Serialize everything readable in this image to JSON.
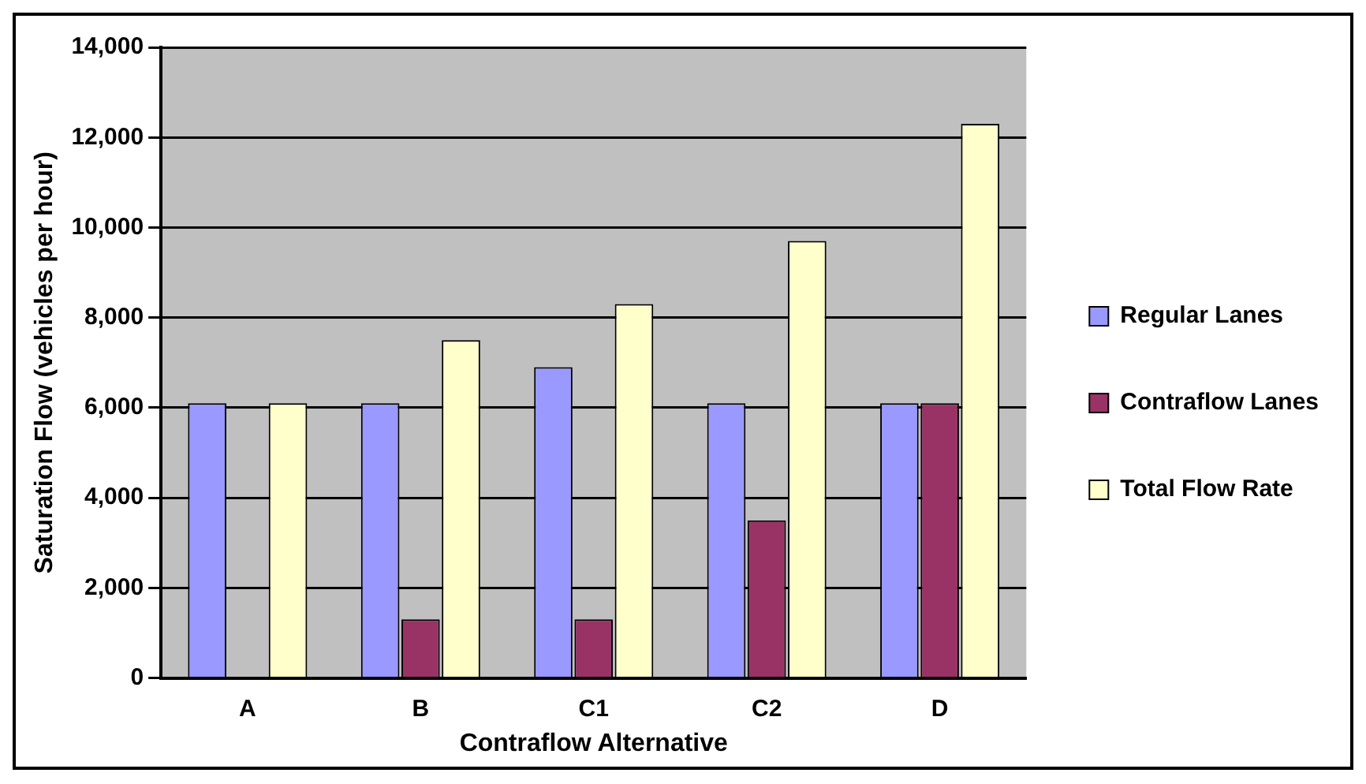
{
  "chart_data": {
    "type": "bar",
    "xlabel": "Contraflow Alternative",
    "ylabel": "Saturation Flow (vehicles per hour)",
    "categories": [
      "A",
      "B",
      "C1",
      "C2",
      "D"
    ],
    "series": [
      {
        "name": "Regular Lanes",
        "color": "#9999ff",
        "values": [
          6100,
          6100,
          6900,
          6100,
          6100
        ]
      },
      {
        "name": "Contraflow Lanes",
        "color": "#993366",
        "values": [
          0,
          1300,
          1300,
          3500,
          6100
        ]
      },
      {
        "name": "Total Flow Rate",
        "color": "#ffffcc",
        "values": [
          6100,
          7500,
          8300,
          9700,
          12300
        ]
      }
    ],
    "ylim": [
      0,
      14000
    ],
    "yticks": [
      0,
      {
        "value": 2000,
        "label": "2,000"
      },
      {
        "value": 4000,
        "label": "4,000"
      },
      {
        "value": 6000,
        "label": "6,000"
      },
      {
        "value": 8000,
        "label": "8,000"
      },
      {
        "value": 10000,
        "label": "10,000"
      },
      {
        "value": 12000,
        "label": "12,000"
      },
      {
        "value": 14000,
        "label": "14,000"
      }
    ],
    "grid": "y",
    "legend": "right"
  }
}
